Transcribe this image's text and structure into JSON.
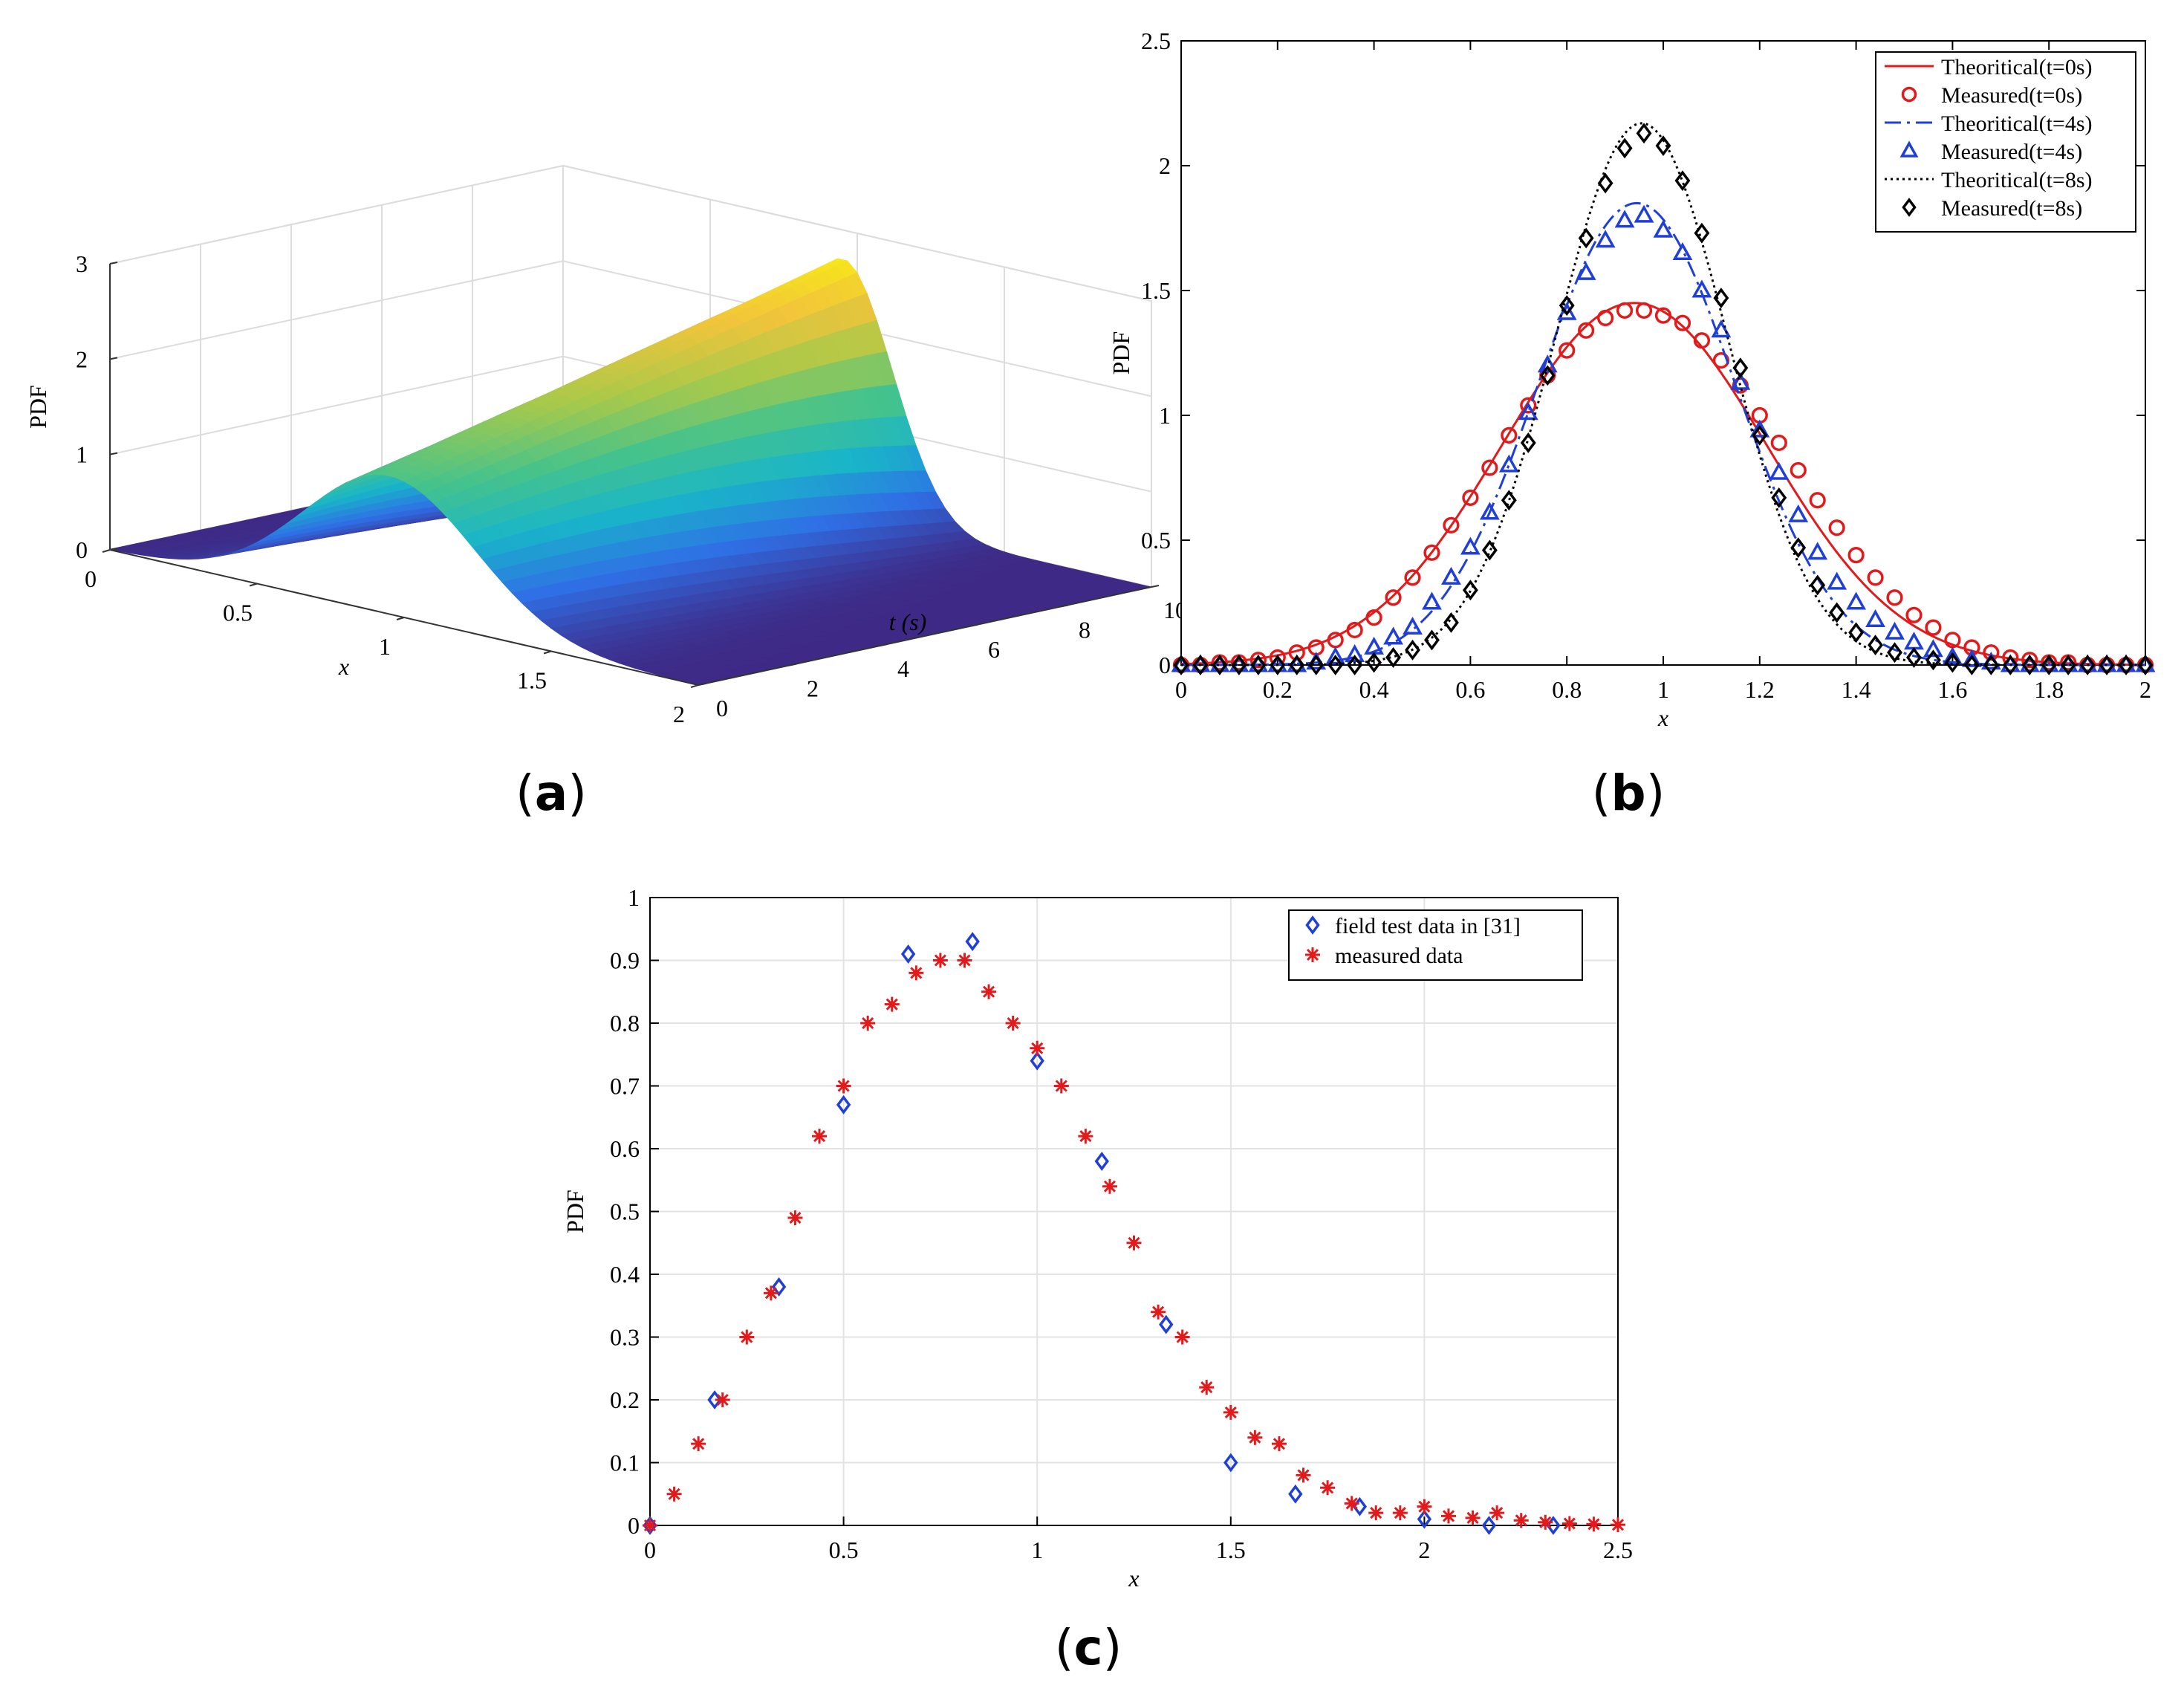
{
  "labels": {
    "a": "a",
    "b": "b",
    "c": "c"
  },
  "chart_data": [
    {
      "id": "a",
      "type": "surface",
      "zlabel": "PDF",
      "xlabel": "x",
      "ylabel": "t (s)",
      "x_ticks": [
        "0",
        "0.5",
        "1",
        "1.5",
        "2"
      ],
      "t_ticks": [
        "0",
        "2",
        "4",
        "6",
        "8",
        "10"
      ],
      "z_ticks": [
        "0",
        "1",
        "2",
        "3"
      ],
      "xlim": [
        0,
        2
      ],
      "tlim": [
        0,
        10
      ],
      "zlim": [
        0,
        3
      ],
      "peak_x": 0.95,
      "peak_pdf_t0": 1.45,
      "peak_pdf_t10": 2.7,
      "colormap": [
        "#3e2a86",
        "#2f6fe6",
        "#19b5c9",
        "#46c38b",
        "#a8c94a",
        "#f2c43b",
        "#f8f20f"
      ]
    },
    {
      "id": "b",
      "type": "line",
      "xlabel": "x",
      "ylabel": "PDF",
      "xlim": [
        0,
        2
      ],
      "ylim": [
        0,
        2.5
      ],
      "x_ticks": [
        "0",
        "0.2",
        "0.4",
        "0.6",
        "0.8",
        "1",
        "1.2",
        "1.4",
        "1.6",
        "1.8",
        "2"
      ],
      "y_ticks": [
        "0",
        "0.5",
        "1",
        "1.5",
        "2",
        "2.5"
      ],
      "legend_position": "top-right",
      "series": [
        {
          "name": "Theoritical(t=0s)",
          "kind": "line",
          "style": "solid",
          "color": "#e31a1c",
          "mu": 0.94,
          "sigma": 0.275,
          "peak": 1.45
        },
        {
          "name": "Measured(t=0s)",
          "kind": "marker",
          "marker": "circle",
          "color": "#e31a1c",
          "x": [
            0,
            0.04,
            0.08,
            0.12,
            0.16,
            0.2,
            0.24,
            0.28,
            0.32,
            0.36,
            0.4,
            0.44,
            0.48,
            0.52,
            0.56,
            0.6,
            0.64,
            0.68,
            0.72,
            0.76,
            0.8,
            0.84,
            0.88,
            0.92,
            0.96,
            1.0,
            1.04,
            1.08,
            1.12,
            1.16,
            1.2,
            1.24,
            1.28,
            1.32,
            1.36,
            1.4,
            1.44,
            1.48,
            1.52,
            1.56,
            1.6,
            1.64,
            1.68,
            1.72,
            1.76,
            1.8,
            1.84,
            1.88,
            1.92,
            1.96,
            2.0
          ],
          "y": [
            0,
            0,
            0.01,
            0.01,
            0.02,
            0.03,
            0.05,
            0.07,
            0.1,
            0.14,
            0.19,
            0.27,
            0.35,
            0.45,
            0.56,
            0.67,
            0.79,
            0.92,
            1.04,
            1.16,
            1.26,
            1.34,
            1.39,
            1.42,
            1.42,
            1.4,
            1.37,
            1.3,
            1.22,
            1.12,
            1.0,
            0.89,
            0.78,
            0.66,
            0.55,
            0.44,
            0.35,
            0.27,
            0.2,
            0.15,
            0.1,
            0.07,
            0.05,
            0.03,
            0.02,
            0.01,
            0.01,
            0.0,
            0.0,
            0.0,
            0.0
          ]
        },
        {
          "name": "Theoritical(t=4s)",
          "kind": "line",
          "style": "dashdot",
          "color": "#1f3fd6",
          "mu": 0.945,
          "sigma": 0.205,
          "peak": 1.85
        },
        {
          "name": "Measured(t=4s)",
          "kind": "marker",
          "marker": "triangle",
          "color": "#1f3fd6",
          "x": [
            0,
            0.04,
            0.08,
            0.12,
            0.16,
            0.2,
            0.24,
            0.28,
            0.32,
            0.36,
            0.4,
            0.44,
            0.48,
            0.52,
            0.56,
            0.6,
            0.64,
            0.68,
            0.72,
            0.76,
            0.8,
            0.84,
            0.88,
            0.92,
            0.96,
            1.0,
            1.04,
            1.08,
            1.12,
            1.16,
            1.2,
            1.24,
            1.28,
            1.32,
            1.36,
            1.4,
            1.44,
            1.48,
            1.52,
            1.56,
            1.6,
            1.64,
            1.68,
            1.72,
            1.76,
            1.8,
            1.84,
            1.88,
            1.92,
            1.96,
            2.0
          ],
          "y": [
            0,
            0,
            0,
            0,
            0,
            0,
            0,
            0.01,
            0.03,
            0.04,
            0.07,
            0.11,
            0.15,
            0.25,
            0.35,
            0.47,
            0.61,
            0.8,
            1.01,
            1.2,
            1.41,
            1.57,
            1.7,
            1.78,
            1.8,
            1.74,
            1.65,
            1.5,
            1.34,
            1.13,
            0.94,
            0.77,
            0.6,
            0.45,
            0.33,
            0.25,
            0.18,
            0.13,
            0.09,
            0.06,
            0.03,
            0.02,
            0.01,
            0.0,
            0.0,
            0.0,
            0.0,
            0.0,
            0.0,
            0.0,
            0.0
          ]
        },
        {
          "name": "Theoritical(t=8s)",
          "kind": "line",
          "style": "dotted",
          "color": "#000000",
          "mu": 0.955,
          "sigma": 0.178,
          "peak": 2.17
        },
        {
          "name": "Measured(t=8s)",
          "kind": "marker",
          "marker": "diamond",
          "color": "#000000",
          "x": [
            0,
            0.04,
            0.08,
            0.12,
            0.16,
            0.2,
            0.24,
            0.28,
            0.32,
            0.36,
            0.4,
            0.44,
            0.48,
            0.52,
            0.56,
            0.6,
            0.64,
            0.68,
            0.72,
            0.76,
            0.8,
            0.84,
            0.88,
            0.92,
            0.96,
            1.0,
            1.04,
            1.08,
            1.12,
            1.16,
            1.2,
            1.24,
            1.28,
            1.32,
            1.36,
            1.4,
            1.44,
            1.48,
            1.52,
            1.56,
            1.6,
            1.64,
            1.68,
            1.72,
            1.76,
            1.8,
            1.84,
            1.88,
            1.92,
            1.96,
            2.0
          ],
          "y": [
            0,
            0,
            0,
            0,
            0,
            0,
            0,
            0,
            0,
            0,
            0.01,
            0.03,
            0.06,
            0.1,
            0.17,
            0.3,
            0.46,
            0.66,
            0.89,
            1.16,
            1.44,
            1.71,
            1.93,
            2.07,
            2.13,
            2.08,
            1.94,
            1.73,
            1.47,
            1.19,
            0.92,
            0.67,
            0.47,
            0.32,
            0.21,
            0.13,
            0.08,
            0.05,
            0.03,
            0.02,
            0.01,
            0.0,
            0.0,
            0.0,
            0.0,
            0.0,
            0.0,
            0.0,
            0.0,
            0.0,
            0.0
          ]
        }
      ]
    },
    {
      "id": "c",
      "type": "scatter",
      "xlabel": "x",
      "ylabel": "PDF",
      "xlim": [
        0,
        2.5
      ],
      "ylim": [
        0,
        1
      ],
      "grid": true,
      "x_ticks": [
        "0",
        "0.5",
        "1",
        "1.5",
        "2",
        "2.5"
      ],
      "y_ticks": [
        "0",
        "0.1",
        "0.2",
        "0.3",
        "0.4",
        "0.5",
        "0.6",
        "0.7",
        "0.8",
        "0.9",
        "1"
      ],
      "legend_position": "top-right",
      "series": [
        {
          "name": "field test data in [31]",
          "marker": "diamond",
          "color": "#1f3fd6",
          "x": [
            0,
            0.167,
            0.333,
            0.5,
            0.667,
            0.833,
            1.0,
            1.167,
            1.333,
            1.5,
            1.667,
            1.833,
            2.0,
            2.167,
            2.333
          ],
          "y": [
            0,
            0.2,
            0.38,
            0.67,
            0.91,
            0.93,
            0.74,
            0.58,
            0.32,
            0.1,
            0.05,
            0.03,
            0.01,
            0.0,
            0.0
          ]
        },
        {
          "name": "measured data",
          "marker": "asterisk",
          "color": "#e31a1c",
          "x": [
            0,
            0.0625,
            0.125,
            0.1875,
            0.25,
            0.3125,
            0.375,
            0.4375,
            0.5,
            0.5625,
            0.625,
            0.6875,
            0.75,
            0.8125,
            0.875,
            0.9375,
            1.0,
            1.0625,
            1.125,
            1.1875,
            1.25,
            1.3125,
            1.375,
            1.4375,
            1.5,
            1.5625,
            1.625,
            1.6875,
            1.75,
            1.8125,
            1.875,
            1.9375,
            2.0,
            2.0625,
            2.125,
            2.1875,
            2.25,
            2.3125,
            2.375,
            2.4375,
            2.5
          ],
          "y": [
            0,
            0.05,
            0.13,
            0.2,
            0.3,
            0.37,
            0.49,
            0.62,
            0.7,
            0.8,
            0.83,
            0.88,
            0.9,
            0.9,
            0.85,
            0.8,
            0.76,
            0.7,
            0.62,
            0.54,
            0.45,
            0.34,
            0.3,
            0.22,
            0.18,
            0.14,
            0.13,
            0.08,
            0.06,
            0.035,
            0.02,
            0.02,
            0.03,
            0.015,
            0.012,
            0.02,
            0.008,
            0.005,
            0.003,
            0.002,
            0.001
          ]
        }
      ]
    }
  ]
}
